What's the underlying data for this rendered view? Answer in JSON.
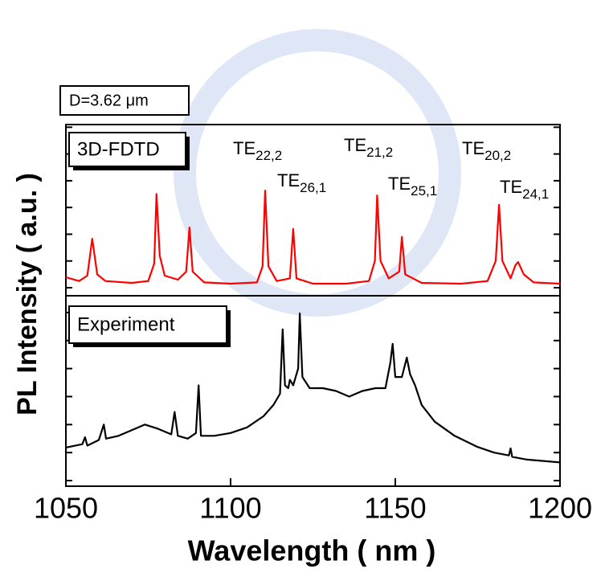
{
  "figure": {
    "note": "D=3.62 μm",
    "ylabel": "PL Intensity ( a.u. )",
    "xlabel": "Wavelength ( nm )"
  },
  "chart_data": [
    {
      "type": "line",
      "label": "3D-FDTD",
      "color": "#ff0000",
      "xlim": [
        1050,
        1200
      ],
      "ylim": [
        -0.3,
        6.1
      ],
      "yticks": [
        0,
        1,
        2,
        3,
        4,
        5,
        6
      ],
      "x": [
        1050,
        1054,
        1056.5,
        1058,
        1059.5,
        1062,
        1070,
        1075,
        1076.8,
        1077.5,
        1078.5,
        1080,
        1084,
        1086.5,
        1087.5,
        1088.5,
        1092,
        1100,
        1108,
        1109.7,
        1110.5,
        1111.5,
        1114,
        1118,
        1119,
        1120,
        1125,
        1135,
        1142,
        1143.8,
        1144.5,
        1145.5,
        1148,
        1151.2,
        1152,
        1153,
        1158,
        1170,
        1178,
        1180.5,
        1181.5,
        1182.5,
        1185,
        1186.5,
        1187.3,
        1189,
        1192,
        1200
      ],
      "values": [
        0.39,
        0.25,
        0.45,
        1.83,
        0.5,
        0.25,
        0.18,
        0.25,
        0.9,
        3.5,
        1.2,
        0.45,
        0.3,
        0.6,
        2.25,
        0.6,
        0.2,
        0.15,
        0.2,
        0.8,
        3.63,
        0.8,
        0.25,
        0.35,
        2.2,
        0.35,
        0.15,
        0.15,
        0.25,
        1.0,
        3.45,
        1.0,
        0.35,
        0.6,
        1.9,
        0.5,
        0.18,
        0.15,
        0.25,
        1.0,
        3.1,
        1.0,
        0.35,
        0.85,
        0.96,
        0.5,
        0.2,
        0.15
      ],
      "annotations": [
        {
          "text": "TE",
          "sub": "22,2"
        },
        {
          "text": "TE",
          "sub": "26,1"
        },
        {
          "text": "TE",
          "sub": "21,2"
        },
        {
          "text": "TE",
          "sub": "25,1"
        },
        {
          "text": "TE",
          "sub": "20,2"
        },
        {
          "text": "TE",
          "sub": "24,1"
        }
      ]
    },
    {
      "type": "line",
      "label": "Experiment",
      "color": "#000000",
      "xlim": [
        1050,
        1200
      ],
      "xticks": [
        1050,
        1100,
        1150,
        1200
      ],
      "ylim": [
        -0.2,
        6.6
      ],
      "yticks": [
        0,
        1,
        2,
        3,
        4,
        5,
        6
      ],
      "x": [
        1050,
        1055,
        1055.8,
        1056.5,
        1060,
        1061.5,
        1062.2,
        1066,
        1070,
        1074,
        1078,
        1082,
        1083,
        1084,
        1087,
        1089.5,
        1090.3,
        1091,
        1095,
        1100,
        1105,
        1110,
        1113,
        1115,
        1115.8,
        1116.5,
        1117.5,
        1118,
        1119,
        1120.5,
        1121,
        1121.8,
        1124,
        1128,
        1132,
        1136,
        1140,
        1144,
        1147,
        1148.5,
        1149.2,
        1150,
        1152,
        1153.5,
        1154.5,
        1156,
        1158,
        1162,
        1168,
        1175,
        1180,
        1184.5,
        1185,
        1185.5,
        1190,
        1195,
        1200
      ],
      "values": [
        1.18,
        1.3,
        1.55,
        1.25,
        1.45,
        2.0,
        1.5,
        1.6,
        1.8,
        2.0,
        1.85,
        1.65,
        2.45,
        1.6,
        1.5,
        1.7,
        3.4,
        1.6,
        1.6,
        1.7,
        1.9,
        2.3,
        2.7,
        3.1,
        5.4,
        3.4,
        3.3,
        3.6,
        3.4,
        4.0,
        5.97,
        3.7,
        3.3,
        3.3,
        3.2,
        3.0,
        3.2,
        3.3,
        3.3,
        4.2,
        4.88,
        3.7,
        3.7,
        4.39,
        3.8,
        3.4,
        2.7,
        2.1,
        1.6,
        1.2,
        1.0,
        0.9,
        1.15,
        0.85,
        0.75,
        0.7,
        0.65
      ]
    }
  ]
}
